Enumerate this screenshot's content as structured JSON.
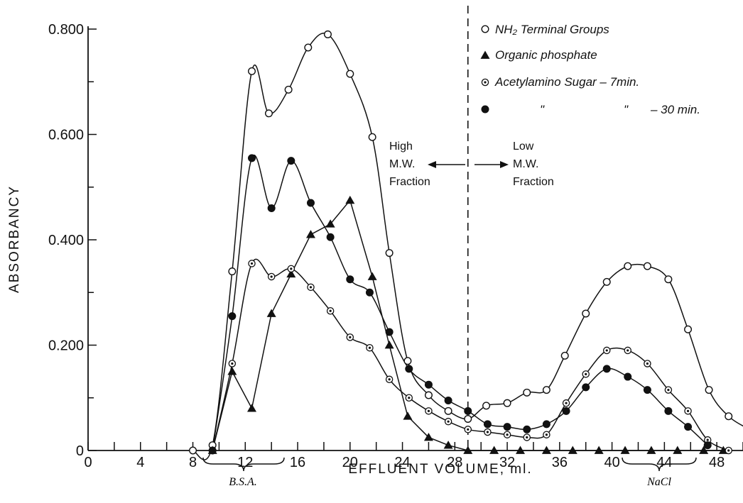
{
  "chart_data": {
    "type": "line",
    "xlabel": "EFFLUENT VOLUME, ml.",
    "ylabel": "ABSORBANCY",
    "xlim": [
      0,
      50
    ],
    "ylim": [
      0,
      0.8
    ],
    "x_ticks": [
      "0",
      "4",
      "8",
      "12",
      "16",
      "20",
      "24",
      "28",
      "32",
      "36",
      "40",
      "44",
      "48"
    ],
    "y_ticks": [
      "0",
      "0.200",
      "0.400",
      "0.600",
      "0.800"
    ],
    "grid": false,
    "legend_position": "top-right",
    "legend": {
      "nh2": "NH₂ Terminal Groups",
      "phosphate": "Organic phosphate",
      "sugar7": "Acetylamino Sugar – 7min.",
      "sugar30_ditto1": "\"",
      "sugar30_ditto2": "\"",
      "sugar30_time": "– 30 min."
    },
    "annotations": {
      "high_line1": "High",
      "high_line2": "M.W.",
      "high_line3": "Fraction",
      "low_line1": "Low",
      "low_line2": "M.W.",
      "low_line3": "Fraction",
      "bsa": "B.S.A.",
      "nacl": "NaCl"
    },
    "divider_x": 29,
    "series": [
      {
        "name": "NH₂ Terminal Groups",
        "marker": "open-circle",
        "points": [
          [
            8,
            0
          ],
          [
            9.5,
            0.01
          ],
          [
            11,
            0.34
          ],
          [
            12.5,
            0.72
          ],
          [
            13.8,
            0.64
          ],
          [
            15.3,
            0.685
          ],
          [
            16.8,
            0.765
          ],
          [
            18.3,
            0.79
          ],
          [
            20,
            0.715
          ],
          [
            21.7,
            0.595
          ],
          [
            23,
            0.375
          ],
          [
            24.4,
            0.17
          ],
          [
            26,
            0.105
          ],
          [
            27.5,
            0.075
          ],
          [
            29,
            0.06
          ],
          [
            30.4,
            0.085
          ],
          [
            32,
            0.09
          ],
          [
            33.5,
            0.11
          ],
          [
            35,
            0.115
          ],
          [
            36.4,
            0.18
          ],
          [
            38,
            0.26
          ],
          [
            39.6,
            0.32
          ],
          [
            41.2,
            0.35
          ],
          [
            42.7,
            0.35
          ],
          [
            44.3,
            0.325
          ],
          [
            45.8,
            0.23
          ],
          [
            47.4,
            0.115
          ],
          [
            48.9,
            0.065
          ],
          [
            50.5,
            0.04
          ]
        ]
      },
      {
        "name": "Organic phosphate",
        "marker": "filled-triangle",
        "points": [
          [
            9.5,
            0
          ],
          [
            11,
            0.15
          ],
          [
            12.5,
            0.08
          ],
          [
            14,
            0.26
          ],
          [
            15.5,
            0.335
          ],
          [
            17,
            0.41
          ],
          [
            18.5,
            0.43
          ],
          [
            20,
            0.475
          ],
          [
            21.7,
            0.33
          ],
          [
            23,
            0.2
          ],
          [
            24.4,
            0.065
          ],
          [
            26,
            0.025
          ],
          [
            27.5,
            0.01
          ],
          [
            29,
            0
          ],
          [
            31,
            0
          ],
          [
            33,
            0
          ],
          [
            35,
            0
          ],
          [
            37,
            0
          ],
          [
            39,
            0
          ],
          [
            41,
            0
          ],
          [
            43,
            0
          ],
          [
            45,
            0
          ],
          [
            47,
            0
          ],
          [
            48.5,
            0
          ]
        ]
      },
      {
        "name": "Acetylamino Sugar – 7min.",
        "marker": "dotted-circle",
        "points": [
          [
            9.5,
            0
          ],
          [
            11,
            0.165
          ],
          [
            12.5,
            0.355
          ],
          [
            14,
            0.33
          ],
          [
            15.5,
            0.345
          ],
          [
            17,
            0.31
          ],
          [
            18.5,
            0.265
          ],
          [
            20,
            0.215
          ],
          [
            21.5,
            0.195
          ],
          [
            23,
            0.135
          ],
          [
            24.5,
            0.1
          ],
          [
            26,
            0.075
          ],
          [
            27.5,
            0.055
          ],
          [
            29,
            0.04
          ],
          [
            30.5,
            0.035
          ],
          [
            32,
            0.03
          ],
          [
            33.5,
            0.025
          ],
          [
            35,
            0.03
          ],
          [
            36.5,
            0.09
          ],
          [
            38,
            0.145
          ],
          [
            39.6,
            0.19
          ],
          [
            41.2,
            0.19
          ],
          [
            42.7,
            0.165
          ],
          [
            44.3,
            0.115
          ],
          [
            45.8,
            0.075
          ],
          [
            47.3,
            0.02
          ],
          [
            48.9,
            0
          ]
        ]
      },
      {
        "name": "\" \" – 30 min.",
        "marker": "filled-circle",
        "points": [
          [
            9.5,
            0
          ],
          [
            11,
            0.255
          ],
          [
            12.5,
            0.555
          ],
          [
            14,
            0.46
          ],
          [
            15.5,
            0.55
          ],
          [
            17,
            0.47
          ],
          [
            18.5,
            0.405
          ],
          [
            20,
            0.325
          ],
          [
            21.5,
            0.3
          ],
          [
            23,
            0.225
          ],
          [
            24.5,
            0.155
          ],
          [
            26,
            0.125
          ],
          [
            27.5,
            0.095
          ],
          [
            29,
            0.075
          ],
          [
            30.5,
            0.05
          ],
          [
            32,
            0.045
          ],
          [
            33.5,
            0.04
          ],
          [
            35,
            0.05
          ],
          [
            36.5,
            0.075
          ],
          [
            38,
            0.12
          ],
          [
            39.6,
            0.155
          ],
          [
            41.2,
            0.14
          ],
          [
            42.7,
            0.115
          ],
          [
            44.3,
            0.075
          ],
          [
            45.8,
            0.045
          ],
          [
            47.3,
            0.01
          ]
        ]
      }
    ]
  }
}
